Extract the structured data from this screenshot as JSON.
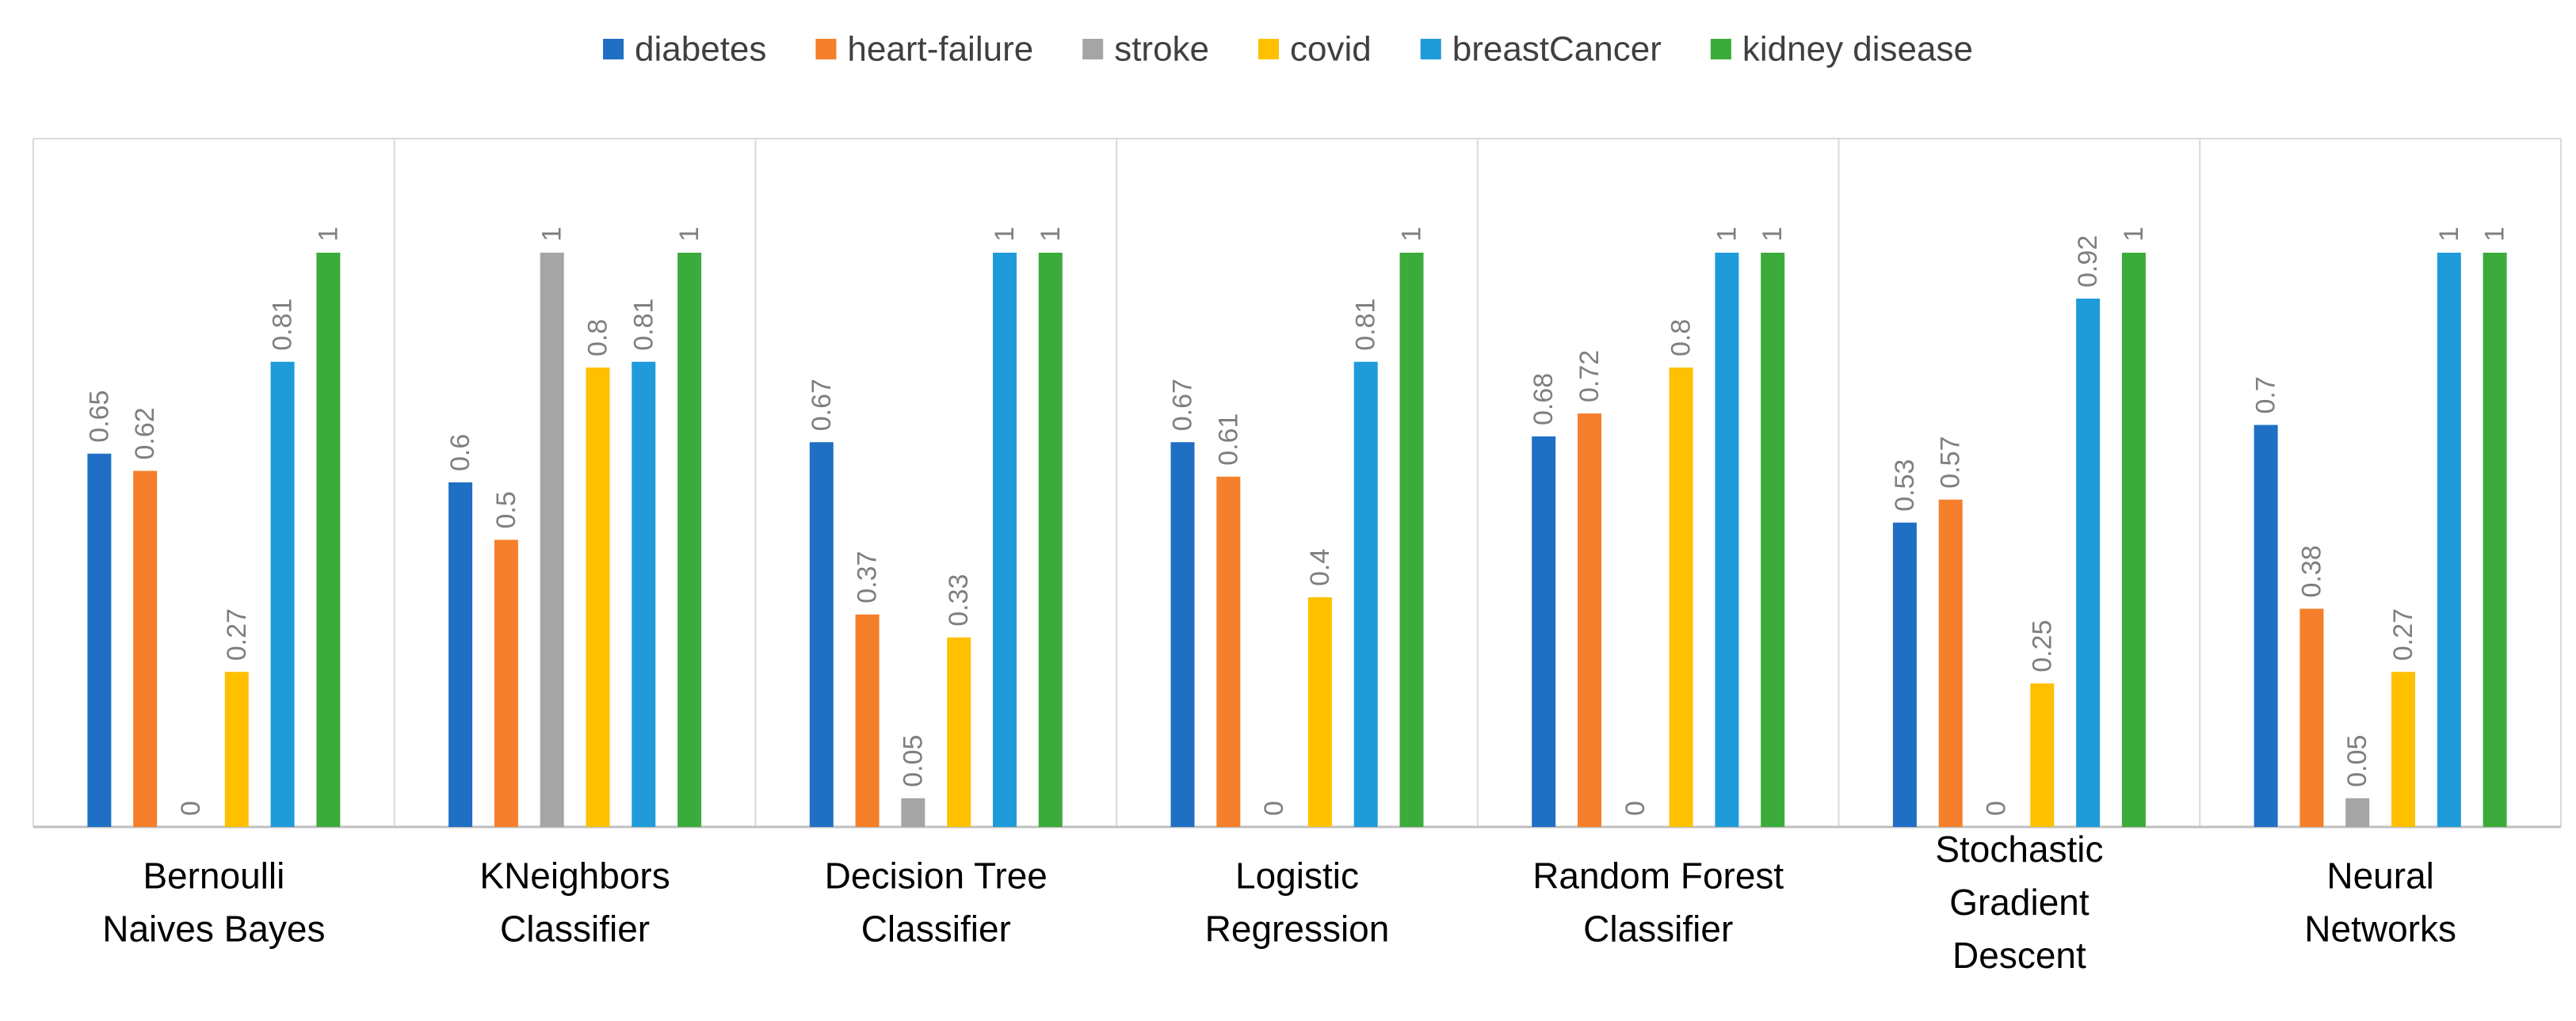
{
  "chart_data": {
    "type": "bar",
    "title": "",
    "xlabel": "",
    "ylabel": "",
    "ylim": [
      0,
      1.15
    ],
    "grid": false,
    "legend_position": "top",
    "categories": [
      [
        "Bernoulli",
        "Naives Bayes"
      ],
      [
        "KNeighbors",
        "Classifier"
      ],
      [
        "Decision Tree",
        "Classifier"
      ],
      [
        "Logistic",
        "Regression"
      ],
      [
        "Random Forest",
        "Classifier"
      ],
      [
        "Stochastic",
        "Gradient",
        "Descent"
      ],
      [
        "Neural",
        "Networks"
      ]
    ],
    "series": [
      {
        "name": "diabetes",
        "color": "#1F6FC5",
        "values": [
          0.65,
          0.6,
          0.67,
          0.67,
          0.68,
          0.53,
          0.7
        ],
        "labels": [
          "0.65",
          "0.6",
          "0.67",
          "0.67",
          "0.68",
          "0.53",
          "0.7"
        ]
      },
      {
        "name": "heart-failure",
        "color": "#F57F2A",
        "values": [
          0.62,
          0.5,
          0.37,
          0.61,
          0.72,
          0.57,
          0.38
        ],
        "labels": [
          "0.62",
          "0.5",
          "0.37",
          "0.61",
          "0.72",
          "0.57",
          "0.38"
        ]
      },
      {
        "name": "stroke",
        "color": "#A5A5A5",
        "values": [
          0,
          1,
          0.05,
          0,
          0,
          0,
          0.05
        ],
        "labels": [
          "0",
          "1",
          "0.05",
          "0",
          "0",
          "0",
          "0.05"
        ]
      },
      {
        "name": "covid",
        "color": "#FFC000",
        "values": [
          0.27,
          0.8,
          0.33,
          0.4,
          0.8,
          0.25,
          0.27
        ],
        "labels": [
          "0.27",
          "0.8",
          "0.33",
          "0.4",
          "0.8",
          "0.25",
          "0.27"
        ]
      },
      {
        "name": "breastCancer",
        "color": "#1F9BDA",
        "values": [
          0.81,
          0.81,
          1,
          0.81,
          1,
          0.92,
          1
        ],
        "labels": [
          "0.81",
          "0.81",
          "1",
          "0.81",
          "1",
          "0.92",
          "1"
        ]
      },
      {
        "name": "kidney disease",
        "color": "#3BAB3C",
        "values": [
          1,
          1,
          1,
          1,
          1,
          1,
          1
        ],
        "labels": [
          "1",
          "1",
          "1",
          "1",
          "1",
          "1",
          "1"
        ]
      }
    ]
  }
}
